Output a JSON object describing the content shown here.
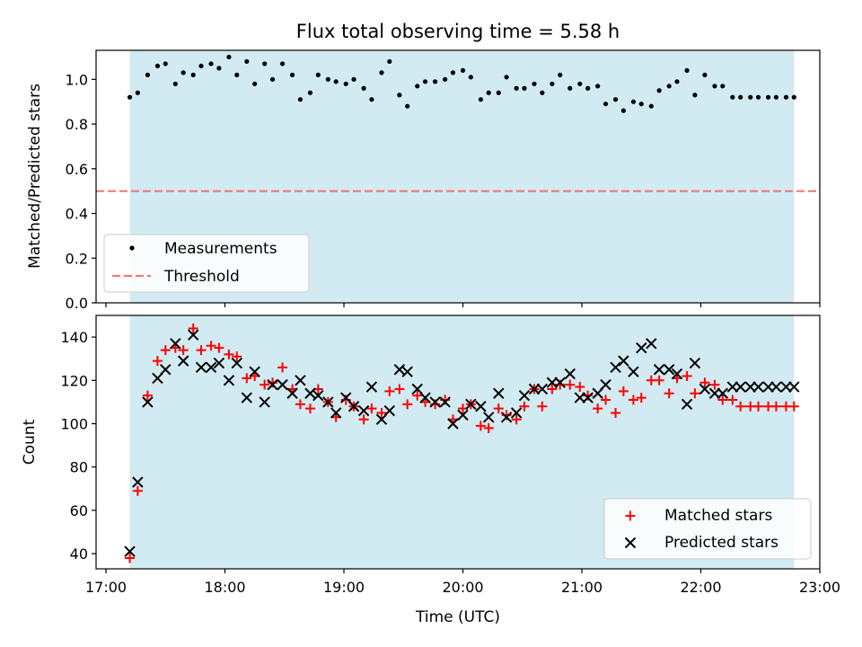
{
  "title": "Flux total observing time = 5.58 h",
  "chart_data": [
    {
      "type": "scatter",
      "panel": "top",
      "title": "Flux total observing time = 5.58 h",
      "ylabel": "Matched/Predicted stars",
      "xlabel": "",
      "ylim": [
        0,
        1.13
      ],
      "yticks": [
        0.0,
        0.2,
        0.4,
        0.6,
        0.8,
        1.0
      ],
      "ytick_labels": [
        "0.0",
        "0.2",
        "0.4",
        "0.6",
        "0.8",
        "1.0"
      ],
      "shaded_span": [
        "17:12",
        "22:47"
      ],
      "shade_color": "#add8e6",
      "legend_position": "lower-left",
      "series": [
        {
          "name": "Measurements",
          "marker": "dot",
          "color": "#000000",
          "x": [
            "17:12",
            "17:16",
            "17:21",
            "17:26",
            "17:30",
            "17:35",
            "17:39",
            "17:44",
            "17:48",
            "17:53",
            "17:57",
            "18:02",
            "18:06",
            "18:11",
            "18:15",
            "18:20",
            "18:24",
            "18:29",
            "18:34",
            "18:38",
            "18:43",
            "18:47",
            "18:52",
            "18:56",
            "19:01",
            "19:05",
            "19:10",
            "19:14",
            "19:19",
            "19:23",
            "19:28",
            "19:32",
            "19:37",
            "19:41",
            "19:46",
            "19:51",
            "19:55",
            "20:00",
            "20:04",
            "20:09",
            "20:13",
            "20:18",
            "20:22",
            "20:27",
            "20:31",
            "20:36",
            "20:40",
            "20:45",
            "20:49",
            "20:54",
            "20:59",
            "21:03",
            "21:08",
            "21:12",
            "21:17",
            "21:21",
            "21:26",
            "21:30",
            "21:35",
            "21:39",
            "21:44",
            "21:48",
            "21:53",
            "21:57",
            "22:02",
            "22:07",
            "22:11",
            "22:16",
            "22:20",
            "22:25",
            "22:29",
            "22:34",
            "22:38",
            "22:43",
            "22:47"
          ],
          "y": [
            0.92,
            0.94,
            1.02,
            1.06,
            1.07,
            0.98,
            1.03,
            1.02,
            1.06,
            1.07,
            1.05,
            1.1,
            1.02,
            1.08,
            0.98,
            1.07,
            1.0,
            1.07,
            1.02,
            0.91,
            0.94,
            1.02,
            1.0,
            0.99,
            0.98,
            1.0,
            0.96,
            0.91,
            1.03,
            1.08,
            0.93,
            0.88,
            0.97,
            0.99,
            0.99,
            1.0,
            1.03,
            1.04,
            1.01,
            0.91,
            0.94,
            0.94,
            1.01,
            0.96,
            0.96,
            0.98,
            0.94,
            0.98,
            1.02,
            0.96,
            0.98,
            0.96,
            0.97,
            0.89,
            0.91,
            0.86,
            0.9,
            0.89,
            0.88,
            0.95,
            0.97,
            0.99,
            1.04,
            0.93,
            1.02,
            0.97,
            0.97,
            0.92,
            0.92,
            0.92,
            0.92,
            0.92,
            0.92,
            0.92,
            0.92
          ]
        },
        {
          "name": "Threshold",
          "marker": "dashed-line",
          "color": "#f07878",
          "y_value": 0.5
        }
      ]
    },
    {
      "type": "scatter",
      "panel": "bottom",
      "xlabel": "Time (UTC)",
      "ylabel": "Count",
      "ylim": [
        33,
        150
      ],
      "yticks": [
        40,
        60,
        80,
        100,
        120,
        140
      ],
      "ytick_labels": [
        "40",
        "60",
        "80",
        "100",
        "120",
        "140"
      ],
      "xlim": [
        "16:55",
        "23:00"
      ],
      "xticks": [
        "17:00",
        "18:00",
        "19:00",
        "20:00",
        "21:00",
        "22:00",
        "23:00"
      ],
      "shaded_span": [
        "17:12",
        "22:47"
      ],
      "shade_color": "#add8e6",
      "legend_position": "lower-right",
      "series": [
        {
          "name": "Matched stars",
          "marker": "plus",
          "color": "#ff0000",
          "x": [
            "17:12",
            "17:16",
            "17:21",
            "17:26",
            "17:30",
            "17:35",
            "17:39",
            "17:44",
            "17:48",
            "17:53",
            "17:57",
            "18:02",
            "18:06",
            "18:11",
            "18:15",
            "18:20",
            "18:24",
            "18:29",
            "18:34",
            "18:38",
            "18:43",
            "18:47",
            "18:52",
            "18:56",
            "19:01",
            "19:05",
            "19:10",
            "19:14",
            "19:19",
            "19:23",
            "19:28",
            "19:32",
            "19:37",
            "19:41",
            "19:46",
            "19:51",
            "19:55",
            "20:00",
            "20:04",
            "20:09",
            "20:13",
            "20:18",
            "20:22",
            "20:27",
            "20:31",
            "20:36",
            "20:40",
            "20:45",
            "20:49",
            "20:54",
            "20:59",
            "21:03",
            "21:08",
            "21:12",
            "21:17",
            "21:21",
            "21:26",
            "21:30",
            "21:35",
            "21:39",
            "21:44",
            "21:48",
            "21:53",
            "21:57",
            "22:02",
            "22:07",
            "22:11",
            "22:16",
            "22:20",
            "22:25",
            "22:29",
            "22:34",
            "22:38",
            "22:43",
            "22:47"
          ],
          "y": [
            38,
            69,
            113,
            129,
            134,
            135,
            134,
            144,
            134,
            136,
            135,
            132,
            131,
            121,
            122,
            118,
            119,
            126,
            116,
            109,
            107,
            116,
            110,
            103,
            111,
            108,
            102,
            107,
            105,
            115,
            116,
            109,
            113,
            110,
            109,
            111,
            102,
            107,
            109,
            99,
            98,
            107,
            104,
            102,
            108,
            116,
            108,
            116,
            118,
            118,
            117,
            113,
            107,
            111,
            105,
            115,
            111,
            112,
            120,
            120,
            114,
            121,
            122,
            114,
            119,
            118,
            111,
            111,
            108,
            108,
            108,
            108,
            108,
            108,
            108
          ]
        },
        {
          "name": "Predicted stars",
          "marker": "x",
          "color": "#000000",
          "x": [
            "17:12",
            "17:16",
            "17:21",
            "17:26",
            "17:30",
            "17:35",
            "17:39",
            "17:44",
            "17:48",
            "17:53",
            "17:57",
            "18:02",
            "18:06",
            "18:11",
            "18:15",
            "18:20",
            "18:24",
            "18:29",
            "18:34",
            "18:38",
            "18:43",
            "18:47",
            "18:52",
            "18:56",
            "19:01",
            "19:05",
            "19:10",
            "19:14",
            "19:19",
            "19:23",
            "19:28",
            "19:32",
            "19:37",
            "19:41",
            "19:46",
            "19:51",
            "19:55",
            "20:00",
            "20:04",
            "20:09",
            "20:13",
            "20:18",
            "20:22",
            "20:27",
            "20:31",
            "20:36",
            "20:40",
            "20:45",
            "20:49",
            "20:54",
            "20:59",
            "21:03",
            "21:08",
            "21:12",
            "21:17",
            "21:21",
            "21:26",
            "21:30",
            "21:35",
            "21:39",
            "21:44",
            "21:48",
            "21:53",
            "21:57",
            "22:02",
            "22:07",
            "22:11",
            "22:16",
            "22:20",
            "22:25",
            "22:29",
            "22:34",
            "22:38",
            "22:43",
            "22:47"
          ],
          "y": [
            41,
            73,
            110,
            121,
            125,
            137,
            129,
            141,
            126,
            126,
            128,
            120,
            128,
            112,
            124,
            110,
            118,
            118,
            114,
            120,
            114,
            113,
            110,
            105,
            112,
            108,
            106,
            117,
            102,
            106,
            125,
            124,
            116,
            112,
            110,
            110,
            100,
            104,
            109,
            108,
            103,
            114,
            103,
            105,
            113,
            116,
            116,
            119,
            119,
            123,
            112,
            112,
            114,
            118,
            126,
            129,
            124,
            135,
            137,
            125,
            125,
            123,
            109,
            128,
            116,
            114,
            114,
            117,
            117,
            117,
            117,
            117,
            117,
            117,
            117
          ]
        }
      ]
    }
  ]
}
